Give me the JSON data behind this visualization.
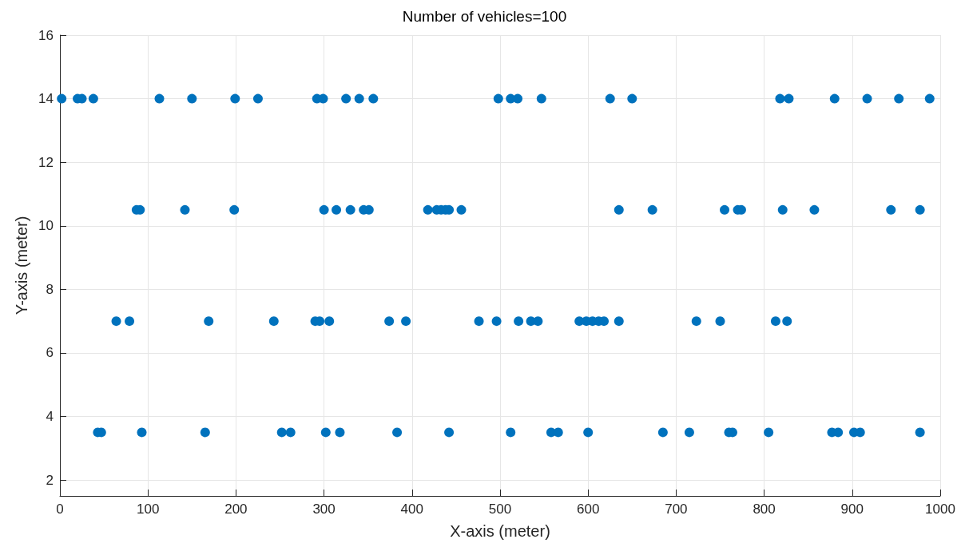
{
  "chart_data": {
    "type": "scatter",
    "title": "Number of vehicles=100",
    "xlabel": "X-axis (meter)",
    "ylabel": "Y-axis (meter)",
    "series": [
      {
        "color": "#0072bd",
        "x": [
          2,
          20,
          25,
          38,
          113,
          150,
          199,
          225,
          292,
          299,
          325,
          340,
          356,
          498,
          512,
          520,
          547,
          625,
          650,
          818,
          828,
          880,
          917,
          953,
          988,
          87,
          91,
          142,
          198,
          300,
          314,
          330,
          345,
          351,
          418,
          428,
          433,
          438,
          442,
          456,
          635,
          673,
          755,
          770,
          774,
          821,
          857,
          944,
          977,
          64,
          79,
          169,
          243,
          290,
          295,
          306,
          374,
          393,
          476,
          496,
          521,
          535,
          543,
          590,
          598,
          605,
          612,
          618,
          635,
          723,
          750,
          813,
          826,
          43,
          47,
          93,
          165,
          252,
          262,
          302,
          318,
          383,
          442,
          512,
          558,
          566,
          600,
          685,
          715,
          760,
          764,
          805,
          877,
          884,
          902,
          909,
          977
        ],
        "values": [
          14,
          14,
          14,
          14,
          14,
          14,
          14,
          14,
          14,
          14,
          14,
          14,
          14,
          14,
          14,
          14,
          14,
          14,
          14,
          14,
          14,
          14,
          14,
          14,
          14,
          10.5,
          10.5,
          10.5,
          10.5,
          10.5,
          10.5,
          10.5,
          10.5,
          10.5,
          10.5,
          10.5,
          10.5,
          10.5,
          10.5,
          10.5,
          10.5,
          10.5,
          10.5,
          10.5,
          10.5,
          10.5,
          10.5,
          10.5,
          10.5,
          7,
          7,
          7,
          7,
          7,
          7,
          7,
          7,
          7,
          7,
          7,
          7,
          7,
          7,
          7,
          7,
          7,
          7,
          7,
          7,
          7,
          7,
          7,
          7,
          3.5,
          3.5,
          3.5,
          3.5,
          3.5,
          3.5,
          3.5,
          3.5,
          3.5,
          3.5,
          3.5,
          3.5,
          3.5,
          3.5,
          3.5,
          3.5,
          3.5,
          3.5,
          3.5,
          3.5,
          3.5,
          3.5,
          3.5,
          3.5
        ]
      }
    ],
    "xlim": [
      0,
      1000
    ],
    "xticks": [
      0,
      100,
      200,
      300,
      400,
      500,
      600,
      700,
      800,
      900,
      1000
    ],
    "ylim": [
      1.5,
      16
    ],
    "yticks": [
      2,
      4,
      6,
      8,
      10,
      12,
      14,
      16
    ],
    "grid": true,
    "marker": "circle"
  }
}
